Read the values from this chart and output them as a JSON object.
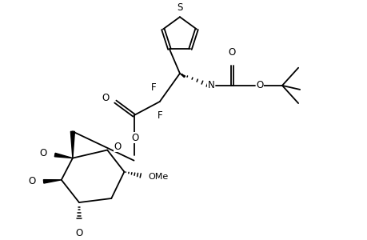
{
  "bg_color": "#ffffff",
  "lw": 1.3,
  "figsize": [
    4.6,
    3.0
  ],
  "dpi": 100,
  "xlim": [
    0.3,
    4.7
  ],
  "ylim": [
    0.2,
    3.1
  ]
}
